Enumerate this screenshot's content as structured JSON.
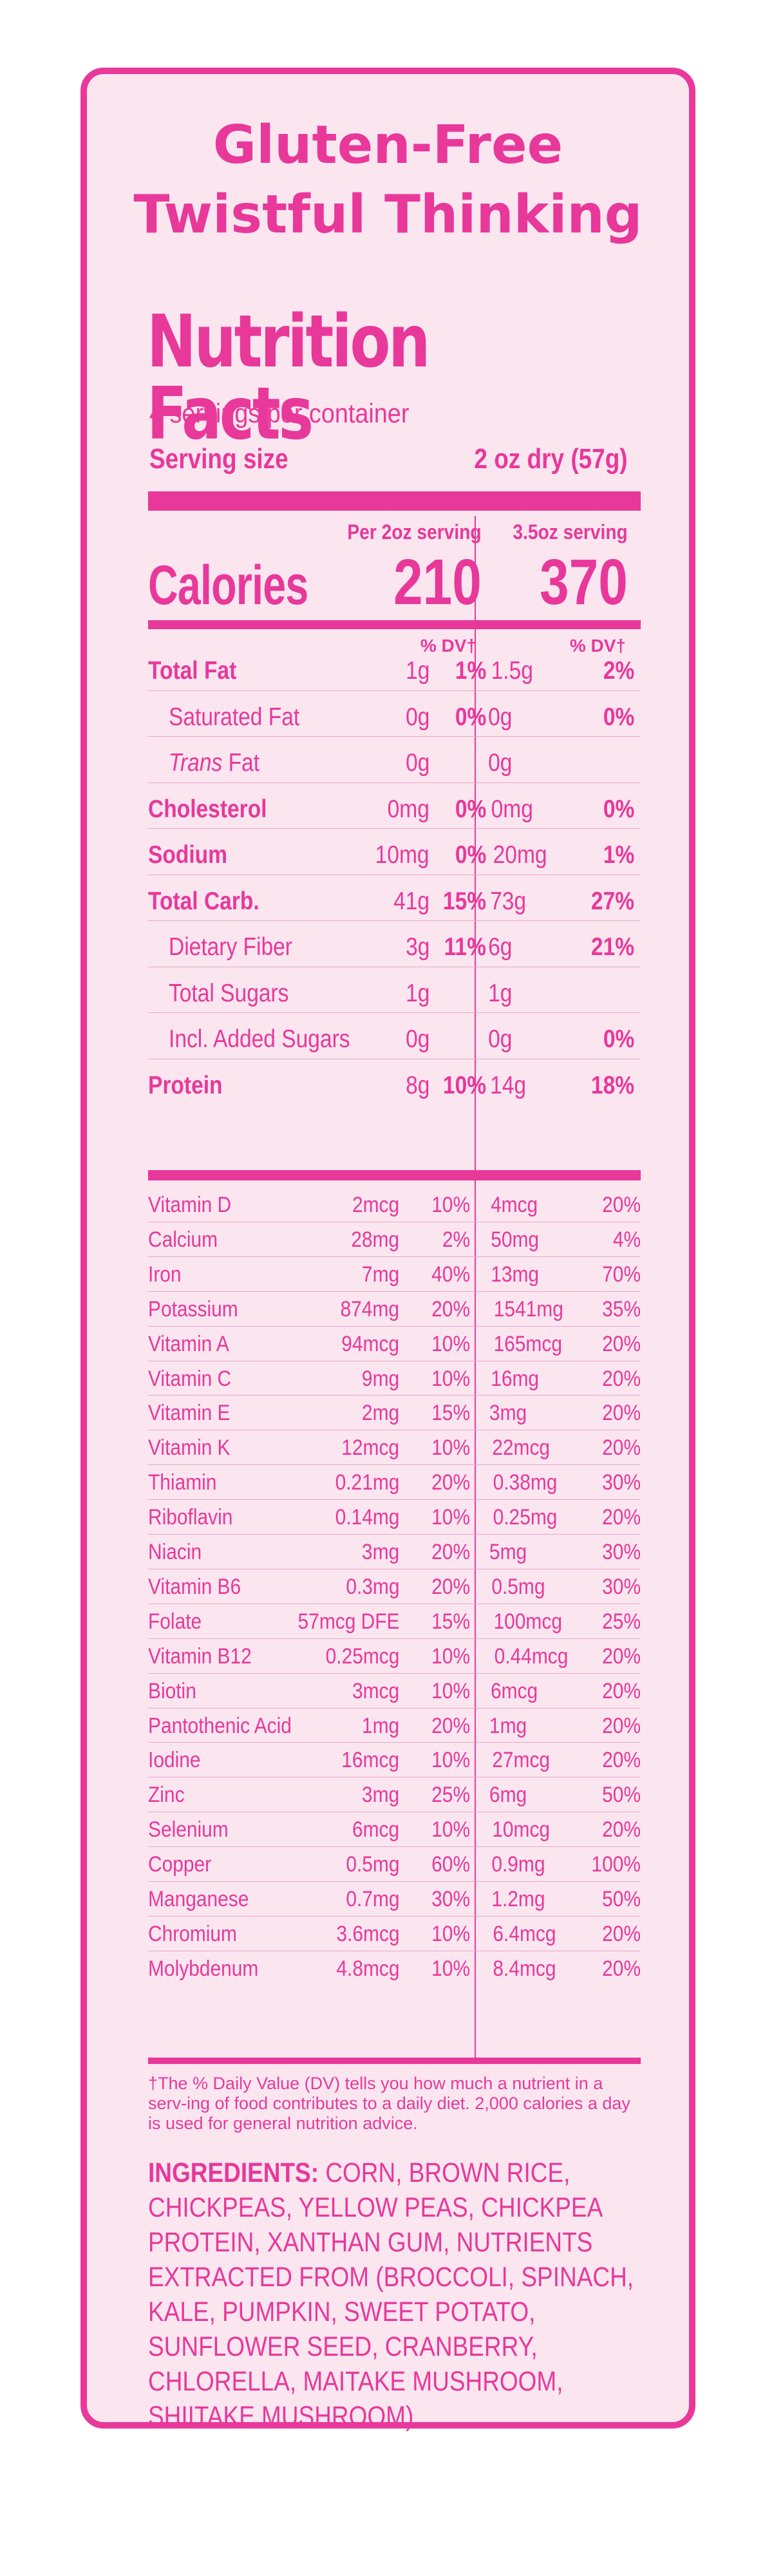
{
  "product": {
    "title_line1": "Gluten-Free",
    "title_line2": "Twistful Thinking"
  },
  "label": {
    "heading": "Nutrition Facts",
    "servings": "4 servings per container",
    "serving_size_label": "Serving size",
    "serving_size_value": "2 oz dry (57g)",
    "col1_header": "Per 2oz serving",
    "col2_header": "3.5oz serving",
    "calories_label": "Calories",
    "calories_col1": "210",
    "calories_col2": "370",
    "dv_header": "% DV†"
  },
  "nutrients": [
    {
      "name": "Total Fat",
      "bold": true,
      "q1": "1g",
      "d1": "1%",
      "q2": "1.5g",
      "d2": "2%"
    },
    {
      "name": "Saturated Fat",
      "q1": "0g",
      "d1": "0%",
      "q2": "0g",
      "d2": "0%"
    },
    {
      "name_italic": "Trans",
      "name": " Fat",
      "q1": "0g",
      "d1": "",
      "q2": "0g",
      "d2": ""
    },
    {
      "name": "Cholesterol",
      "bold": true,
      "q1": "0mg",
      "d1": "0%",
      "q2": "0mg",
      "d2": "0%"
    },
    {
      "name": "Sodium",
      "bold": true,
      "q1": "10mg",
      "d1": "0%",
      "q2": "20mg",
      "d2": "1%"
    },
    {
      "name": "Total Carb.",
      "bold": true,
      "q1": "41g",
      "d1": "15%",
      "q2": "73g",
      "d2": "27%"
    },
    {
      "name": "Dietary Fiber",
      "q1": "3g",
      "d1": "11%",
      "q2": "6g",
      "d2": "21%"
    },
    {
      "name": "Total Sugars",
      "q1": "1g",
      "d1": "",
      "q2": "1g",
      "d2": ""
    },
    {
      "name": "Incl. Added Sugars",
      "q1": "0g",
      "d1": "",
      "q2": "0g",
      "d2": "0%"
    },
    {
      "name": "Protein",
      "bold": true,
      "q1": "8g",
      "d1": "10%",
      "q2": "14g",
      "d2": "18%"
    }
  ],
  "vitamins": [
    {
      "name": "Vitamin D",
      "q1": "2mcg",
      "d1": "10%",
      "q2": "4mcg",
      "d2": "20%"
    },
    {
      "name": "Calcium",
      "q1": "28mg",
      "d1": "2%",
      "q2": "50mg",
      "d2": "4%"
    },
    {
      "name": "Iron",
      "q1": "7mg",
      "d1": "40%",
      "q2": "13mg",
      "d2": "70%"
    },
    {
      "name": "Potassium",
      "q1": "874mg",
      "d1": "20%",
      "q2": "1541mg",
      "d2": "35%"
    },
    {
      "name": "Vitamin A",
      "q1": "94mcg",
      "d1": "10%",
      "q2": "165mcg",
      "d2": "20%"
    },
    {
      "name": "Vitamin C",
      "q1": "9mg",
      "d1": "10%",
      "q2": "16mg",
      "d2": "20%"
    },
    {
      "name": "Vitamin E",
      "q1": "2mg",
      "d1": "15%",
      "q2": "3mg",
      "d2": "20%"
    },
    {
      "name": "Vitamin K",
      "q1": "12mcg",
      "d1": "10%",
      "q2": "22mcg",
      "d2": "20%"
    },
    {
      "name": "Thiamin",
      "q1": "0.21mg",
      "d1": "20%",
      "q2": "0.38mg",
      "d2": "30%"
    },
    {
      "name": "Riboflavin",
      "q1": "0.14mg",
      "d1": "10%",
      "q2": "0.25mg",
      "d2": "20%"
    },
    {
      "name": "Niacin",
      "q1": "3mg",
      "d1": "20%",
      "q2": "5mg",
      "d2": "30%"
    },
    {
      "name": "Vitamin B6",
      "q1": "0.3mg",
      "d1": "20%",
      "q2": "0.5mg",
      "d2": "30%"
    },
    {
      "name": "Folate",
      "q1": "57mcg DFE",
      "d1": "15%",
      "q2": "100mcg",
      "d2": "25%"
    },
    {
      "name": "Vitamin B12",
      "q1": "0.25mcg",
      "d1": "10%",
      "q2": "0.44mcg",
      "d2": "20%"
    },
    {
      "name": "Biotin",
      "q1": "3mcg",
      "d1": "10%",
      "q2": "6mcg",
      "d2": "20%"
    },
    {
      "name": "Pantothenic Acid",
      "q1": "1mg",
      "d1": "20%",
      "q2": "1mg",
      "d2": "20%"
    },
    {
      "name": "Iodine",
      "q1": "16mcg",
      "d1": "10%",
      "q2": "27mcg",
      "d2": "20%"
    },
    {
      "name": "Zinc",
      "q1": "3mg",
      "d1": "25%",
      "q2": "6mg",
      "d2": "50%"
    },
    {
      "name": "Selenium",
      "q1": "6mcg",
      "d1": "10%",
      "q2": "10mcg",
      "d2": "20%"
    },
    {
      "name": "Copper",
      "q1": "0.5mg",
      "d1": "60%",
      "q2": "0.9mg",
      "d2": "100%"
    },
    {
      "name": "Manganese",
      "q1": "0.7mg",
      "d1": "30%",
      "q2": "1.2mg",
      "d2": "50%"
    },
    {
      "name": "Chromium",
      "q1": "3.6mcg",
      "d1": "10%",
      "q2": "6.4mcg",
      "d2": "20%"
    },
    {
      "name": "Molybdenum",
      "q1": "4.8mcg",
      "d1": "10%",
      "q2": "8.4mcg",
      "d2": "20%"
    }
  ],
  "footnote": "†The % Daily Value (DV) tells you how much a nutrient in a serv-ing of  food contributes to a daily diet. 2,000 calories a day is used for general nutrition advice.",
  "ingredients": {
    "label": "INGREDIENTS:",
    "text": " CORN, BROWN RICE, CHICKPEAS, YELLOW PEAS, CHICKPEA PROTEIN, XANTHAN GUM, NUTRIENTS EXTRACTED FROM (BROCCOLI, SPINACH, KALE, PUMPKIN, SWEET POTATO, SUNFLOWER SEED, CRANBERRY, CHLORELLA, MAITAKE MUSHROOM, SHIITAKE MUSHROOM)."
  },
  "colors": {
    "accent": "#e8389a",
    "background": "#fbe6f0",
    "rule": "#e8a7c8"
  }
}
